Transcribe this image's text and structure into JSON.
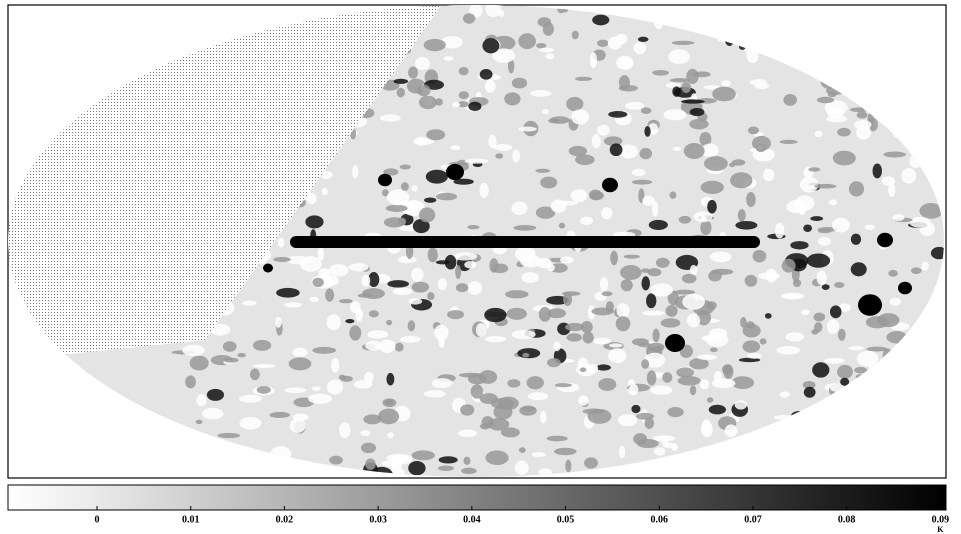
{
  "chart_data": {
    "type": "sky-map",
    "colorbar": {
      "clim": [
        -0.0095,
        0.0906
      ],
      "ticks": [
        0,
        0.01,
        0.02,
        0.03,
        0.04,
        0.05,
        0.06,
        0.07,
        0.08,
        0.09
      ],
      "unit": "K"
    }
  }
}
